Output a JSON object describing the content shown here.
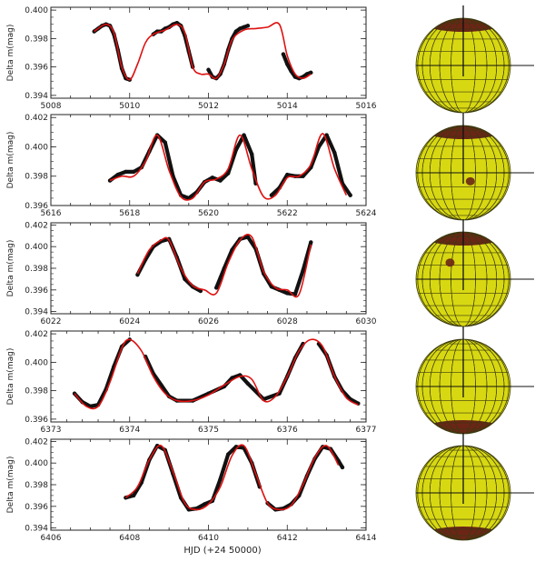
{
  "figure": {
    "xlabel": "HJD (+24 50000)"
  },
  "chart_data": [
    {
      "type": "line",
      "ylabel": "Delta m(mag)",
      "xlim": [
        5008,
        5016
      ],
      "ylim": [
        0.3938,
        0.4002
      ],
      "xticks": [
        "5008",
        "5010",
        "5012",
        "5014",
        "5016"
      ],
      "yticks": [
        "0.394",
        "0.396",
        "0.398",
        "0.400"
      ],
      "segments": [
        [
          5009.1,
          5010.0
        ],
        [
          5010.6,
          5011.6
        ],
        [
          5012.0,
          5013.0
        ],
        [
          5013.9,
          5014.6
        ]
      ],
      "series": [
        {
          "role": "observed",
          "color": "#111111",
          "x": [
            5009.1,
            5009.2,
            5009.3,
            5009.4,
            5009.5,
            5009.6,
            5009.7,
            5009.8,
            5009.9,
            5010.0,
            5010.6,
            5010.7,
            5010.8,
            5010.9,
            5011.0,
            5011.1,
            5011.2,
            5011.3,
            5011.4,
            5011.5,
            5011.6,
            5012.0,
            5012.1,
            5012.2,
            5012.3,
            5012.4,
            5012.5,
            5012.6,
            5012.7,
            5012.8,
            5012.9,
            5013.0,
            5013.9,
            5014.0,
            5014.1,
            5014.2,
            5014.3,
            5014.4,
            5014.5,
            5014.6
          ],
          "y": [
            0.3985,
            0.3987,
            0.3989,
            0.399,
            0.3989,
            0.3983,
            0.3972,
            0.3959,
            0.3952,
            0.3951,
            0.3983,
            0.3985,
            0.3985,
            0.3987,
            0.3988,
            0.399,
            0.3991,
            0.3989,
            0.3982,
            0.3971,
            0.396,
            0.3958,
            0.3953,
            0.3952,
            0.3955,
            0.3962,
            0.3972,
            0.398,
            0.3985,
            0.3987,
            0.3988,
            0.3989,
            0.3969,
            0.3962,
            0.3957,
            0.3953,
            0.3952,
            0.3953,
            0.3955,
            0.3956
          ]
        },
        {
          "role": "model",
          "color": "#dd1111",
          "x": [
            5009.1,
            5009.4,
            5009.6,
            5009.8,
            5010.0,
            5010.2,
            5010.4,
            5010.6,
            5010.9,
            5011.2,
            5011.4,
            5011.6,
            5011.8,
            5012.0,
            5012.2,
            5012.4,
            5012.6,
            5012.9,
            5013.2,
            5013.5,
            5013.8,
            5014.0,
            5014.2,
            5014.4,
            5014.6
          ],
          "y": [
            0.3985,
            0.399,
            0.3984,
            0.396,
            0.3951,
            0.3962,
            0.3977,
            0.3983,
            0.3986,
            0.399,
            0.3984,
            0.396,
            0.3955,
            0.3955,
            0.3952,
            0.3962,
            0.3979,
            0.3986,
            0.3987,
            0.3988,
            0.399,
            0.3968,
            0.3955,
            0.3952,
            0.3955
          ]
        }
      ]
    },
    {
      "type": "line",
      "ylabel": "Delta m(mag)",
      "xlim": [
        5616,
        5624
      ],
      "ylim": [
        0.396,
        0.4022
      ],
      "xticks": [
        "5616",
        "5618",
        "5620",
        "5622",
        "5624"
      ],
      "yticks": [
        "0.396",
        "0.398",
        "0.400",
        "0.402"
      ],
      "segments": [
        [
          5617.5,
          5621.2
        ],
        [
          5621.6,
          5623.6
        ]
      ],
      "series": [
        {
          "role": "observed",
          "color": "#111111",
          "x": [
            5617.5,
            5617.7,
            5617.9,
            5618.1,
            5618.3,
            5618.5,
            5618.7,
            5618.9,
            5619.1,
            5619.3,
            5619.5,
            5619.7,
            5619.9,
            5620.1,
            5620.3,
            5620.5,
            5620.7,
            5620.9,
            5621.1,
            5621.2,
            5621.6,
            5621.8,
            5622.0,
            5622.2,
            5622.4,
            5622.6,
            5622.8,
            5623.0,
            5623.2,
            5623.4,
            5623.6
          ],
          "y": [
            0.3977,
            0.3981,
            0.3983,
            0.3983,
            0.3986,
            0.3997,
            0.4008,
            0.4003,
            0.398,
            0.3967,
            0.3965,
            0.3969,
            0.3976,
            0.3979,
            0.3977,
            0.3982,
            0.3998,
            0.4008,
            0.3995,
            0.3975,
            0.3967,
            0.3972,
            0.3981,
            0.398,
            0.398,
            0.3986,
            0.4,
            0.4008,
            0.3996,
            0.3975,
            0.3967
          ]
        },
        {
          "role": "model",
          "color": "#dd1111",
          "x": [
            5617.5,
            5617.8,
            5618.1,
            5618.4,
            5618.7,
            5619.0,
            5619.3,
            5619.6,
            5619.9,
            5620.2,
            5620.5,
            5620.8,
            5621.1,
            5621.4,
            5621.7,
            5622.0,
            5622.3,
            5622.6,
            5622.9,
            5623.2,
            5623.5
          ],
          "y": [
            0.3977,
            0.398,
            0.398,
            0.399,
            0.4008,
            0.3984,
            0.3966,
            0.3965,
            0.3976,
            0.3978,
            0.3985,
            0.4008,
            0.3985,
            0.3966,
            0.3967,
            0.3979,
            0.398,
            0.3988,
            0.4009,
            0.3985,
            0.3967
          ]
        }
      ]
    },
    {
      "type": "line",
      "ylabel": "Delta m(mag)",
      "xlim": [
        6022,
        6030
      ],
      "ylim": [
        0.3938,
        0.4022
      ],
      "xticks": [
        "6022",
        "6024",
        "6026",
        "6028",
        "6030"
      ],
      "yticks": [
        "0.394",
        "0.396",
        "0.398",
        "0.400",
        "0.402"
      ],
      "segments": [
        [
          6024.2,
          6025.8
        ],
        [
          6026.2,
          6028.6
        ]
      ],
      "series": [
        {
          "role": "observed",
          "color": "#111111",
          "x": [
            6024.2,
            6024.4,
            6024.6,
            6024.8,
            6025.0,
            6025.2,
            6025.4,
            6025.6,
            6025.8,
            6026.2,
            6026.4,
            6026.6,
            6026.8,
            6027.0,
            6027.2,
            6027.4,
            6027.6,
            6027.8,
            6028.0,
            6028.2,
            6028.4,
            6028.6
          ],
          "y": [
            0.3974,
            0.3988,
            0.4,
            0.4005,
            0.4007,
            0.399,
            0.397,
            0.3963,
            0.3959,
            0.3962,
            0.398,
            0.3997,
            0.4007,
            0.4009,
            0.3998,
            0.3975,
            0.3963,
            0.396,
            0.3957,
            0.3956,
            0.3978,
            0.4004
          ]
        },
        {
          "role": "model",
          "color": "#dd1111",
          "x": [
            6024.2,
            6024.5,
            6024.8,
            6025.0,
            6025.3,
            6025.6,
            6025.9,
            6026.2,
            6026.5,
            6026.8,
            6027.1,
            6027.4,
            6027.7,
            6028.0,
            6028.3,
            6028.6
          ],
          "y": [
            0.3975,
            0.3997,
            0.4006,
            0.4006,
            0.398,
            0.3964,
            0.396,
            0.3957,
            0.3985,
            0.4006,
            0.4009,
            0.3977,
            0.3962,
            0.396,
            0.3956,
            0.4002
          ]
        }
      ]
    },
    {
      "type": "line",
      "ylabel": "Delta m(mag)",
      "xlim": [
        6373,
        6377
      ],
      "ylim": [
        0.3958,
        0.4022
      ],
      "xticks": [
        "6373",
        "6374",
        "6375",
        "6376",
        "6377"
      ],
      "yticks": [
        "0.396",
        "0.398",
        "0.400",
        "0.402"
      ],
      "segments": [
        [
          6373.3,
          6374.0
        ],
        [
          6374.2,
          6376.2
        ],
        [
          6376.4,
          6376.9
        ]
      ],
      "series": [
        {
          "role": "observed",
          "color": "#111111",
          "x": [
            6373.3,
            6373.4,
            6373.5,
            6373.6,
            6373.7,
            6373.8,
            6373.9,
            6374.0,
            6374.2,
            6374.3,
            6374.4,
            6374.5,
            6374.6,
            6374.8,
            6375.0,
            6375.2,
            6375.3,
            6375.4,
            6375.5,
            6375.7,
            6375.9,
            6376.0,
            6376.1,
            6376.2,
            6376.4,
            6376.5,
            6376.6,
            6376.7,
            6376.8,
            6376.9
          ],
          "y": [
            0.3978,
            0.3972,
            0.3969,
            0.397,
            0.3981,
            0.3997,
            0.4011,
            0.4016,
            0.4004,
            0.3992,
            0.3984,
            0.3976,
            0.3973,
            0.3973,
            0.3978,
            0.3983,
            0.3989,
            0.3991,
            0.3985,
            0.3974,
            0.3978,
            0.399,
            0.4003,
            0.4013,
            0.4013,
            0.4005,
            0.399,
            0.398,
            0.3974,
            0.3971
          ]
        },
        {
          "role": "model",
          "color": "#dd1111",
          "x": [
            6373.3,
            6373.45,
            6373.6,
            6373.75,
            6373.9,
            6374.0,
            6374.15,
            6374.3,
            6374.45,
            6374.6,
            6374.8,
            6375.0,
            6375.2,
            6375.4,
            6375.55,
            6375.7,
            6375.85,
            6376.0,
            6376.15,
            6376.3,
            6376.45,
            6376.6,
            6376.75,
            6376.9
          ],
          "y": [
            0.3978,
            0.3969,
            0.3969,
            0.3986,
            0.401,
            0.4016,
            0.4008,
            0.399,
            0.3978,
            0.3973,
            0.3973,
            0.3977,
            0.3984,
            0.399,
            0.3988,
            0.3973,
            0.3976,
            0.399,
            0.4008,
            0.4016,
            0.4011,
            0.399,
            0.3975,
            0.397
          ]
        }
      ]
    },
    {
      "type": "line",
      "ylabel": "Delta m(mag)",
      "xlim": [
        6406,
        6414
      ],
      "ylim": [
        0.3938,
        0.4022
      ],
      "xticks": [
        "6406",
        "6408",
        "6410",
        "6412",
        "6414"
      ],
      "yticks": [
        "0.394",
        "0.396",
        "0.398",
        "0.400",
        "0.402"
      ],
      "segments": [
        [
          6407.9,
          6411.3
        ],
        [
          6411.5,
          6413.4
        ]
      ],
      "series": [
        {
          "role": "observed",
          "color": "#111111",
          "x": [
            6407.9,
            6408.1,
            6408.3,
            6408.5,
            6408.7,
            6408.9,
            6409.1,
            6409.3,
            6409.5,
            6409.7,
            6409.9,
            6410.1,
            6410.3,
            6410.5,
            6410.7,
            6410.9,
            6411.1,
            6411.3,
            6411.5,
            6411.7,
            6411.9,
            6412.1,
            6412.3,
            6412.5,
            6412.7,
            6412.9,
            6413.1,
            6413.3,
            6413.4
          ],
          "y": [
            0.3968,
            0.397,
            0.3982,
            0.4003,
            0.4016,
            0.4012,
            0.399,
            0.3968,
            0.3957,
            0.3958,
            0.3962,
            0.3965,
            0.3985,
            0.4008,
            0.4015,
            0.4014,
            0.4,
            0.3978,
            0.3963,
            0.3957,
            0.3958,
            0.3962,
            0.397,
            0.3988,
            0.4004,
            0.4015,
            0.4013,
            0.4002,
            0.3996
          ]
        },
        {
          "role": "model",
          "color": "#dd1111",
          "x": [
            6407.9,
            6408.2,
            6408.5,
            6408.8,
            6409.1,
            6409.4,
            6409.7,
            6410.0,
            6410.3,
            6410.6,
            6410.9,
            6411.2,
            6411.5,
            6411.8,
            6412.1,
            6412.4,
            6412.7,
            6413.0,
            6413.3
          ],
          "y": [
            0.3968,
            0.3978,
            0.4003,
            0.4016,
            0.3992,
            0.3963,
            0.3957,
            0.3962,
            0.3978,
            0.4007,
            0.4016,
            0.399,
            0.3963,
            0.3957,
            0.3961,
            0.398,
            0.4005,
            0.4016,
            0.3998
          ]
        }
      ]
    }
  ],
  "spheres": [
    {
      "name": "star-model-epoch-1",
      "body_color": "#d8d812",
      "spot_color": "#6b2616",
      "spots": [
        {
          "type": "polar-cap",
          "pole": "top"
        }
      ]
    },
    {
      "name": "star-model-epoch-2",
      "body_color": "#d8d812",
      "spot_color": "#6b2616",
      "spots": [
        {
          "type": "polar-cap",
          "pole": "top"
        },
        {
          "type": "circular-spot",
          "lon": 0.15,
          "lat": 0.18
        }
      ]
    },
    {
      "name": "star-model-epoch-3",
      "body_color": "#d8d812",
      "spot_color": "#6b2616",
      "spots": [
        {
          "type": "polar-cap",
          "pole": "top"
        },
        {
          "type": "circular-spot",
          "lon": -0.28,
          "lat": -0.35
        }
      ]
    },
    {
      "name": "star-model-epoch-4",
      "body_color": "#d8d812",
      "spot_color": "#6b2616",
      "spots": [
        {
          "type": "polar-cap",
          "pole": "bottom"
        }
      ]
    },
    {
      "name": "star-model-epoch-5",
      "body_color": "#d8d812",
      "spot_color": "#6b2616",
      "spots": [
        {
          "type": "polar-cap",
          "pole": "bottom"
        }
      ]
    }
  ]
}
